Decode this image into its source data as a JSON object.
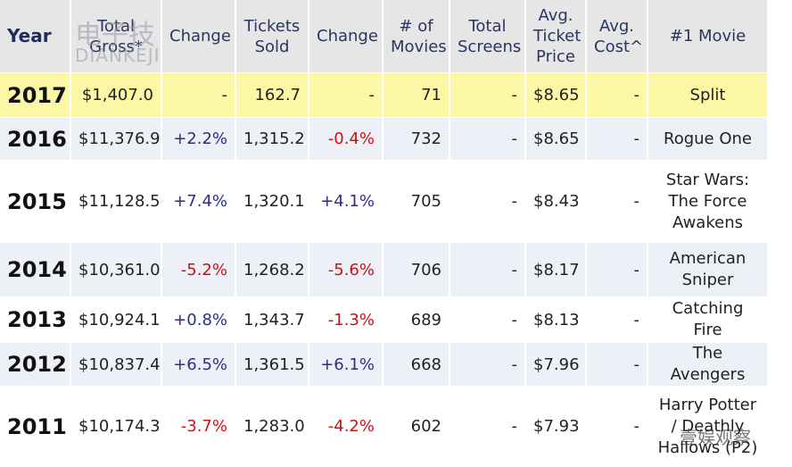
{
  "header": [
    "Year",
    "Total Gross*",
    "Change",
    "Tickets Sold",
    "Change",
    "# of Movies",
    "Total Screens",
    "Avg. Ticket Price",
    "Avg. Cost^",
    "#1 Movie"
  ],
  "rows": [
    [
      "2017",
      "$1,407.0",
      "-",
      "162.7",
      "-",
      "71",
      "-",
      "$8.65",
      "-",
      "Split"
    ],
    [
      "2016",
      "$11,376.9",
      "+2.2%",
      "1,315.2",
      "-0.4%",
      "732",
      "-",
      "$8.65",
      "-",
      "Rogue One"
    ],
    [
      "2015",
      "$11,128.5",
      "+7.4%",
      "1,320.1",
      "+4.1%",
      "705",
      "-",
      "$8.43",
      "-",
      "Star Wars: The Force Awakens"
    ],
    [
      "2014",
      "$10,361.0",
      "-5.2%",
      "1,268.2",
      "-5.6%",
      "706",
      "-",
      "$8.17",
      "-",
      "American Sniper"
    ],
    [
      "2013",
      "$10,924.1",
      "+0.8%",
      "1,343.7",
      "-1.3%",
      "689",
      "-",
      "$8.13",
      "-",
      "Catching Fire"
    ],
    [
      "2012",
      "$10,837.4",
      "+6.5%",
      "1,361.5",
      "+6.1%",
      "668",
      "-",
      "$7.96",
      "-",
      "The Avengers"
    ],
    [
      "2011",
      "$10,174.3",
      "-3.7%",
      "1,283.0",
      "-4.2%",
      "602",
      "-",
      "$7.93",
      "-",
      "Harry Potter / Deathly Hallows (P2)"
    ]
  ],
  "watermarks": [
    "电子技",
    "DIANKEJI",
    "壹娱观察"
  ]
}
